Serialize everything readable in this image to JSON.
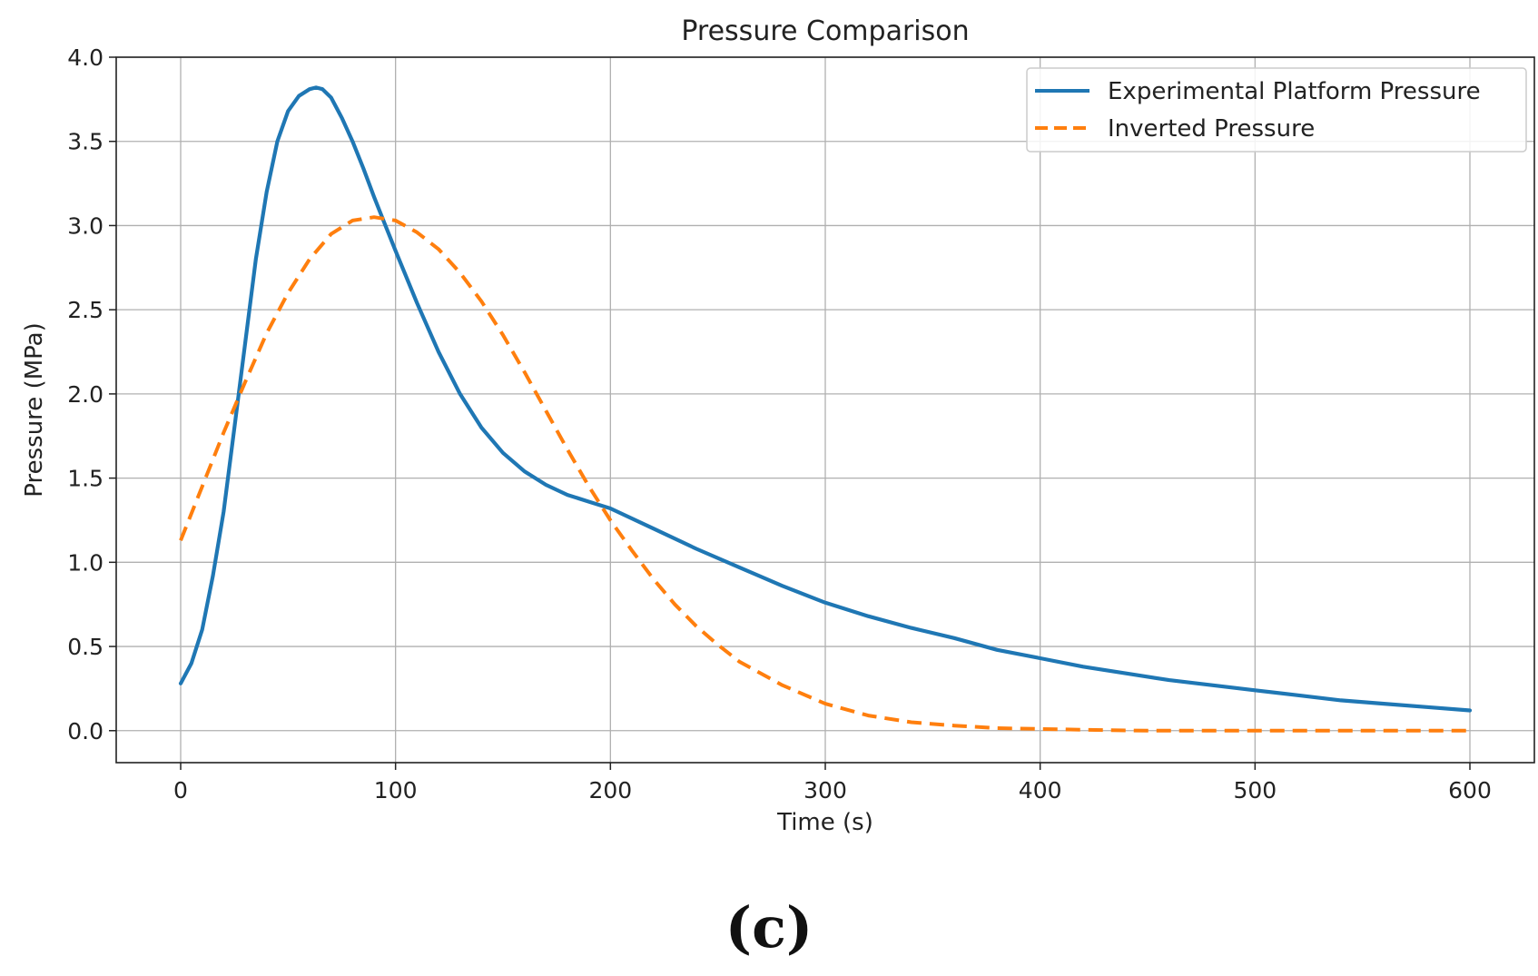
{
  "chart_data": {
    "type": "line",
    "title": "Pressure Comparison",
    "xlabel": "Time (s)",
    "ylabel": "Pressure (MPa)",
    "xlim": [
      -30,
      630
    ],
    "ylim": [
      -0.19,
      4.0
    ],
    "xticks": [
      0,
      100,
      200,
      300,
      400,
      500,
      600
    ],
    "yticks": [
      0.0,
      0.5,
      1.0,
      1.5,
      2.0,
      2.5,
      3.0,
      3.5,
      4.0
    ],
    "xtick_labels": [
      "0",
      "100",
      "200",
      "300",
      "400",
      "500",
      "600"
    ],
    "ytick_labels": [
      "0.0",
      "0.5",
      "1.0",
      "1.5",
      "2.0",
      "2.5",
      "3.0",
      "3.5",
      "4.0"
    ],
    "grid": true,
    "legend_position": "top-right",
    "series": [
      {
        "name": "Experimental Platform Pressure",
        "color": "#1f77b4",
        "style": "solid",
        "x": [
          0,
          5,
          10,
          15,
          20,
          25,
          30,
          35,
          40,
          45,
          50,
          55,
          60,
          63,
          66,
          70,
          75,
          80,
          85,
          90,
          95,
          100,
          110,
          120,
          130,
          140,
          150,
          160,
          170,
          180,
          190,
          200,
          220,
          240,
          260,
          280,
          300,
          320,
          340,
          360,
          380,
          400,
          420,
          440,
          460,
          480,
          500,
          520,
          540,
          560,
          580,
          600
        ],
        "y": [
          0.28,
          0.4,
          0.6,
          0.92,
          1.3,
          1.8,
          2.3,
          2.8,
          3.2,
          3.5,
          3.68,
          3.77,
          3.81,
          3.82,
          3.81,
          3.76,
          3.64,
          3.5,
          3.34,
          3.17,
          3.01,
          2.85,
          2.54,
          2.25,
          2.0,
          1.8,
          1.65,
          1.54,
          1.46,
          1.4,
          1.36,
          1.32,
          1.2,
          1.08,
          0.97,
          0.86,
          0.76,
          0.68,
          0.61,
          0.55,
          0.48,
          0.43,
          0.38,
          0.34,
          0.3,
          0.27,
          0.24,
          0.21,
          0.18,
          0.16,
          0.14,
          0.12
        ]
      },
      {
        "name": "Inverted Pressure",
        "color": "#ff7f0e",
        "style": "dashed",
        "x": [
          0,
          10,
          20,
          30,
          40,
          50,
          60,
          70,
          80,
          90,
          100,
          110,
          120,
          130,
          140,
          150,
          160,
          170,
          180,
          190,
          200,
          210,
          220,
          230,
          240,
          250,
          260,
          280,
          300,
          320,
          340,
          360,
          380,
          400,
          420,
          450,
          500,
          550,
          600
        ],
        "y": [
          1.13,
          1.45,
          1.77,
          2.07,
          2.36,
          2.6,
          2.8,
          2.95,
          3.03,
          3.05,
          3.03,
          2.96,
          2.86,
          2.72,
          2.55,
          2.35,
          2.13,
          1.9,
          1.67,
          1.45,
          1.25,
          1.07,
          0.9,
          0.75,
          0.62,
          0.51,
          0.41,
          0.27,
          0.16,
          0.09,
          0.05,
          0.03,
          0.015,
          0.01,
          0.005,
          0.0,
          0.0,
          0.0,
          0.0
        ]
      }
    ]
  },
  "panel_label": "(c)"
}
